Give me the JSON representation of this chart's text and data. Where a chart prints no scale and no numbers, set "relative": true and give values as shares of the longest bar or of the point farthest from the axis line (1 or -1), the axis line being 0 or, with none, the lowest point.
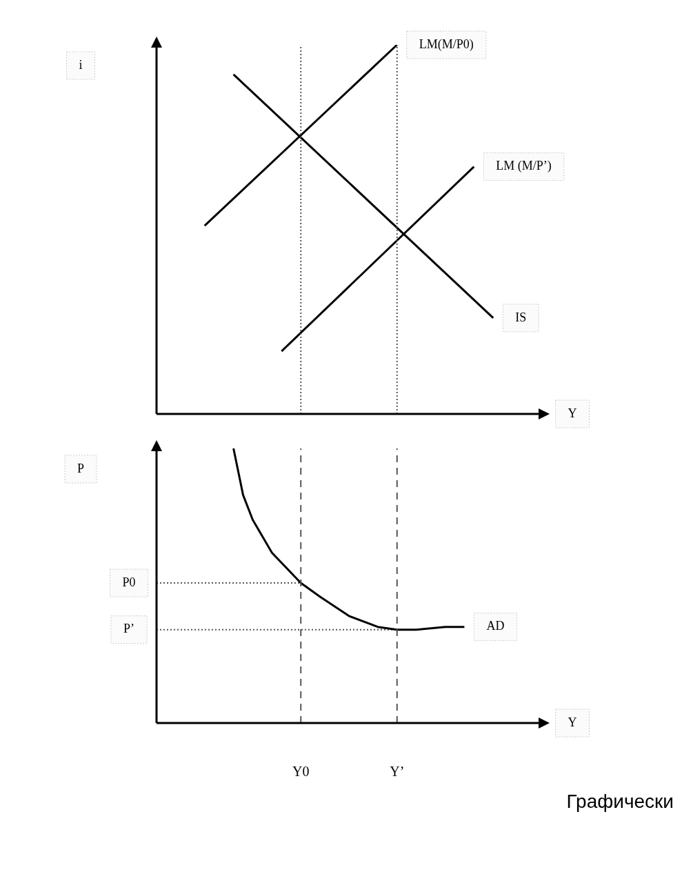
{
  "chart_data": [
    {
      "type": "line",
      "relative": true,
      "ylabel": "i",
      "xlabel": "Y",
      "tick_labels": false,
      "legend": false,
      "grid": false,
      "marker": "none",
      "categories": [
        null,
        null,
        null,
        null,
        null,
        null,
        null,
        null,
        null,
        null,
        null,
        null,
        null,
        null,
        null,
        "Y0",
        null,
        null,
        null,
        null,
        null,
        null,
        null,
        null,
        null,
        "Y’",
        null,
        null,
        null,
        null,
        null,
        null,
        null,
        null,
        null,
        null,
        null,
        null,
        null,
        null,
        null
      ],
      "series": [
        {
          "name": "LM(M/P0)",
          "color": "#000000",
          "values": [
            null,
            null,
            null,
            null,
            null,
            0.51,
            null,
            null,
            null,
            null,
            null,
            null,
            null,
            null,
            null,
            null,
            null,
            null,
            null,
            null,
            null,
            null,
            null,
            null,
            null,
            1.0,
            null,
            null,
            null,
            null,
            null,
            null,
            null,
            null,
            null,
            null,
            null,
            null,
            null,
            null,
            null
          ]
        },
        {
          "name": "LM (M/P’)",
          "color": "#000000",
          "values": [
            null,
            null,
            null,
            null,
            null,
            null,
            null,
            null,
            null,
            null,
            null,
            null,
            null,
            0.17,
            null,
            null,
            null,
            null,
            null,
            null,
            null,
            null,
            null,
            null,
            null,
            null,
            null,
            null,
            null,
            null,
            null,
            null,
            null,
            0.67,
            null,
            null,
            null,
            null,
            null,
            null,
            null
          ]
        },
        {
          "name": "IS",
          "color": "#000000",
          "values": [
            null,
            null,
            null,
            null,
            null,
            null,
            null,
            null,
            0.92,
            null,
            null,
            null,
            null,
            null,
            null,
            null,
            null,
            null,
            null,
            null,
            null,
            null,
            null,
            null,
            null,
            null,
            null,
            null,
            null,
            null,
            null,
            null,
            null,
            null,
            null,
            0.26,
            null,
            null,
            null,
            null,
            null
          ]
        }
      ],
      "ref_lines": [
        {
          "axis": "x",
          "value": "Y0",
          "color": "#555555",
          "line_style": "dotted"
        },
        {
          "axis": "x",
          "value": "Y’",
          "color": "#555555",
          "line_style": "dotted"
        }
      ]
    },
    {
      "type": "line",
      "relative": true,
      "ylabel": "P",
      "xlabel": "Y",
      "tick_labels": "x",
      "legend": false,
      "grid": false,
      "marker": "none",
      "categories": [
        null,
        null,
        null,
        null,
        null,
        null,
        null,
        null,
        null,
        null,
        null,
        null,
        null,
        null,
        null,
        "Y0",
        null,
        null,
        null,
        null,
        null,
        null,
        null,
        null,
        null,
        "Y’",
        null,
        null,
        null,
        null,
        null,
        null,
        null,
        null,
        null,
        null,
        null,
        null,
        null,
        null,
        null
      ],
      "series": [
        {
          "name": "AD",
          "color": "#000000",
          "values": [
            null,
            null,
            null,
            null,
            null,
            null,
            null,
            null,
            1.0,
            0.83,
            0.74,
            null,
            0.62,
            null,
            null,
            0.51,
            null,
            0.46,
            null,
            null,
            0.39,
            null,
            null,
            0.35,
            null,
            0.34,
            null,
            0.34,
            null,
            null,
            0.35,
            null,
            0.35,
            null,
            null,
            null,
            null,
            null,
            null,
            null,
            null
          ]
        },
        {
          "name": "P0",
          "color": "#555555",
          "line_style": "dotted",
          "values": [
            0.51,
            null,
            null,
            null,
            null,
            null,
            null,
            null,
            null,
            null,
            null,
            null,
            null,
            null,
            null,
            0.51,
            null,
            null,
            null,
            null,
            null,
            null,
            null,
            null,
            null,
            null,
            null,
            null,
            null,
            null,
            null,
            null,
            null,
            null,
            null,
            null,
            null,
            null,
            null,
            null,
            null
          ]
        },
        {
          "name": "P’",
          "color": "#555555",
          "line_style": "dotted",
          "values": [
            0.34,
            null,
            null,
            null,
            null,
            null,
            null,
            null,
            null,
            null,
            null,
            null,
            null,
            null,
            null,
            null,
            null,
            null,
            null,
            null,
            null,
            null,
            null,
            null,
            null,
            0.34,
            null,
            null,
            null,
            null,
            null,
            null,
            null,
            null,
            null,
            null,
            null,
            null,
            null,
            null,
            null
          ]
        }
      ],
      "ref_lines": [
        {
          "axis": "x",
          "value": "Y0",
          "color": "#555555",
          "line_style": "dashed"
        },
        {
          "axis": "x",
          "value": "Y’",
          "color": "#555555",
          "line_style": "dashed"
        }
      ],
      "annotations": [
        "Графически"
      ]
    }
  ]
}
